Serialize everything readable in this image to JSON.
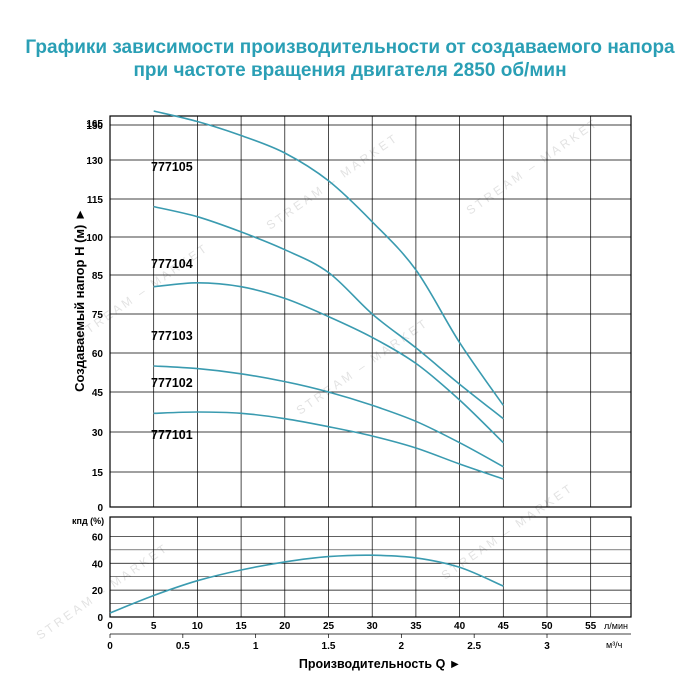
{
  "title": {
    "line1": "Графики зависимости производительности от создаваемого напора",
    "line2": "при частоте вращения двигателя 2850 об/мин"
  },
  "watermark": "STREAM – MARKET",
  "colors": {
    "title": "#2a9fb5",
    "curve": "#3a9bb0",
    "grid": "#000000"
  },
  "chart_data": [
    {
      "type": "line",
      "ylabel": "Создаваемый напор H (м) ►",
      "ylim": [
        0,
        165
      ],
      "y_ticks": [
        "0",
        "15",
        "30",
        "45",
        "60",
        "75",
        "85",
        "100",
        "115",
        "130",
        "150",
        "165"
      ],
      "y_tick_values": [
        0,
        15,
        30,
        45,
        60,
        75,
        85,
        100,
        115,
        130,
        150,
        165
      ],
      "x_ticks": [
        "0",
        "5",
        "10",
        "15",
        "20",
        "25",
        "30",
        "35",
        "40",
        "45",
        "50",
        "55"
      ],
      "x_values": [
        0,
        5,
        10,
        15,
        20,
        25,
        30,
        35,
        40,
        45,
        50,
        55
      ],
      "xlim": [
        0,
        60
      ],
      "grid": true,
      "series": [
        {
          "name": "777105",
          "x": [
            5,
            10,
            15,
            20,
            25,
            30,
            35,
            40,
            45
          ],
          "y": [
            158,
            152,
            144,
            134,
            122,
            106,
            87,
            64,
            40
          ]
        },
        {
          "name": "777104",
          "x": [
            5,
            10,
            15,
            20,
            25,
            30,
            35,
            40,
            45
          ],
          "y": [
            112,
            108,
            102,
            95,
            86,
            75,
            62,
            48,
            35
          ]
        },
        {
          "name": "777103",
          "x": [
            5,
            10,
            15,
            20,
            25,
            30,
            35,
            40,
            45
          ],
          "y": [
            82,
            83,
            82,
            79,
            74,
            66,
            56,
            42,
            26
          ]
        },
        {
          "name": "777102",
          "x": [
            5,
            10,
            15,
            20,
            25,
            30,
            35,
            40,
            45
          ],
          "y": [
            55,
            54,
            52,
            49,
            45,
            40,
            34,
            26,
            17
          ]
        },
        {
          "name": "777101",
          "x": [
            5,
            10,
            15,
            20,
            25,
            30,
            35,
            40,
            45
          ],
          "y": [
            37,
            37.5,
            37,
            35,
            32,
            28.5,
            24,
            18,
            12
          ]
        }
      ]
    },
    {
      "type": "line",
      "ylabel": "кпд (%)",
      "ylim": [
        0,
        70
      ],
      "y_ticks": [
        "0",
        "20",
        "40",
        "60"
      ],
      "y_tick_values": [
        0,
        20,
        40,
        60
      ],
      "xlim": [
        0,
        60
      ],
      "grid": true,
      "x_ticks_flow": [
        "0",
        "5",
        "10",
        "15",
        "20",
        "25",
        "30",
        "35",
        "40",
        "45",
        "50",
        "55"
      ],
      "x_ticks_flow_values": [
        0,
        5,
        10,
        15,
        20,
        25,
        30,
        35,
        40,
        45,
        50,
        55
      ],
      "x_unit_flow": "л/мин",
      "x_ticks_m3": [
        "0",
        "0.5",
        "1",
        "1.5",
        "2",
        "2.5",
        "3"
      ],
      "x_ticks_m3_values": [
        0,
        0.5,
        1,
        1.5,
        2,
        2.5,
        3
      ],
      "x_unit_m3": "м³/ч",
      "xlabel": "Производительность Q ►",
      "series": [
        {
          "x": [
            0,
            5,
            10,
            15,
            20,
            25,
            30,
            35,
            40,
            45
          ],
          "y": [
            3,
            16,
            27,
            35,
            41,
            45,
            46,
            44,
            37,
            23
          ]
        }
      ]
    }
  ]
}
